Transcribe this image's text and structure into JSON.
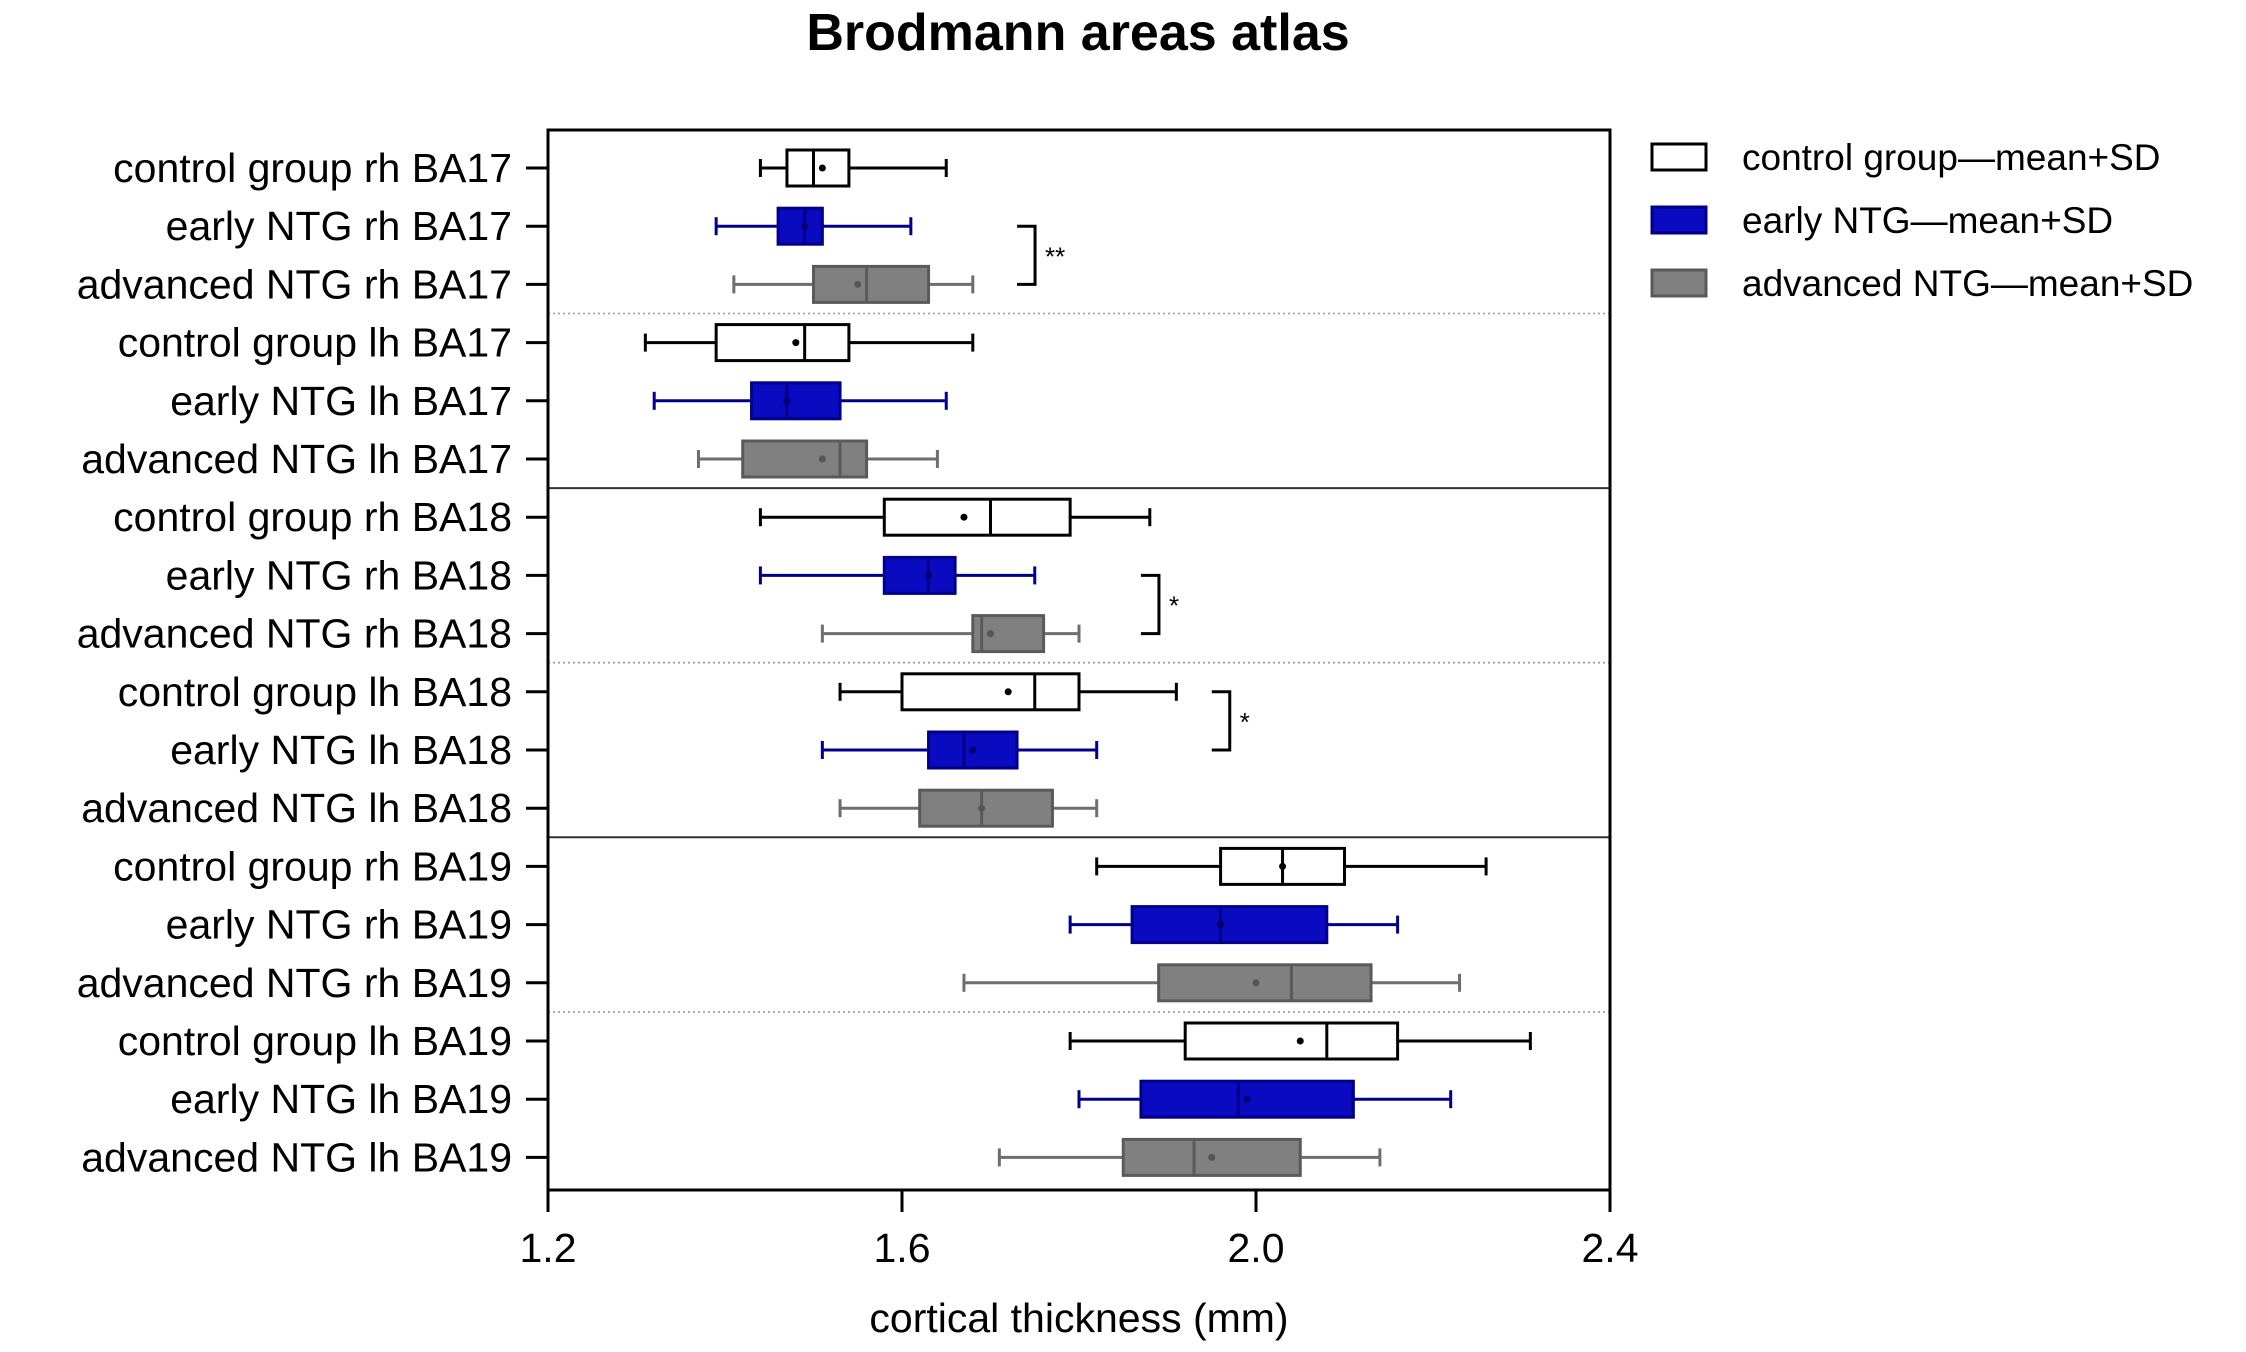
{
  "chart_data": {
    "type": "boxplot-horizontal",
    "title": "Brodmann areas atlas",
    "xlabel": "cortical thickness (mm)",
    "xlim": [
      1.2,
      2.4
    ],
    "xticks": [
      "1.2",
      "1.6",
      "2.0",
      "2.4"
    ],
    "xtick_values": [
      1.2,
      1.6,
      2.0,
      2.4
    ],
    "groups": [
      {
        "name": "control group—mean+SD",
        "key": "control",
        "fill": "#ffffff",
        "stroke": "#000000",
        "whisker": "#000000"
      },
      {
        "name": "early NTG—mean+SD",
        "key": "early",
        "fill": "#0a0ac0",
        "stroke": "#00008b",
        "whisker": "#00008b"
      },
      {
        "name": "advanced NTG—mean+SD",
        "key": "advanced",
        "fill": "#808080",
        "stroke": "#5a5a5a",
        "whisker": "#6e6e6e"
      }
    ],
    "rows": [
      {
        "label": "control group rh BA17",
        "group": "control",
        "min": 1.44,
        "q1": 1.47,
        "median": 1.5,
        "q3": 1.54,
        "max": 1.65,
        "mean": 1.51
      },
      {
        "label": "early NTG rh BA17",
        "group": "early",
        "min": 1.39,
        "q1": 1.46,
        "median": 1.49,
        "q3": 1.51,
        "max": 1.61,
        "mean": 1.49
      },
      {
        "label": "advanced NTG rh BA17",
        "group": "advanced",
        "min": 1.41,
        "q1": 1.5,
        "median": 1.56,
        "q3": 1.63,
        "max": 1.68,
        "mean": 1.55
      },
      {
        "label": "control group lh BA17",
        "group": "control",
        "min": 1.31,
        "q1": 1.39,
        "median": 1.49,
        "q3": 1.54,
        "max": 1.68,
        "mean": 1.48
      },
      {
        "label": "early NTG lh BA17",
        "group": "early",
        "min": 1.32,
        "q1": 1.43,
        "median": 1.47,
        "q3": 1.53,
        "max": 1.65,
        "mean": 1.47
      },
      {
        "label": "advanced NTG lh BA17",
        "group": "advanced",
        "min": 1.37,
        "q1": 1.42,
        "median": 1.53,
        "q3": 1.56,
        "max": 1.64,
        "mean": 1.51
      },
      {
        "label": "control group rh BA18",
        "group": "control",
        "min": 1.44,
        "q1": 1.58,
        "median": 1.7,
        "q3": 1.79,
        "max": 1.88,
        "mean": 1.67
      },
      {
        "label": "early NTG rh BA18",
        "group": "early",
        "min": 1.44,
        "q1": 1.58,
        "median": 1.63,
        "q3": 1.66,
        "max": 1.75,
        "mean": 1.63
      },
      {
        "label": "advanced NTG rh BA18",
        "group": "advanced",
        "min": 1.51,
        "q1": 1.68,
        "median": 1.69,
        "q3": 1.76,
        "max": 1.8,
        "mean": 1.7
      },
      {
        "label": "control group lh BA18",
        "group": "control",
        "min": 1.53,
        "q1": 1.6,
        "median": 1.75,
        "q3": 1.8,
        "max": 1.91,
        "mean": 1.72
      },
      {
        "label": "early NTG lh BA18",
        "group": "early",
        "min": 1.51,
        "q1": 1.63,
        "median": 1.67,
        "q3": 1.73,
        "max": 1.82,
        "mean": 1.68
      },
      {
        "label": "advanced NTG lh BA18",
        "group": "advanced",
        "min": 1.53,
        "q1": 1.62,
        "median": 1.69,
        "q3": 1.77,
        "max": 1.82,
        "mean": 1.69
      },
      {
        "label": "control group rh BA19",
        "group": "control",
        "min": 1.82,
        "q1": 1.96,
        "median": 2.03,
        "q3": 2.1,
        "max": 2.26,
        "mean": 2.03
      },
      {
        "label": "early NTG rh BA19",
        "group": "early",
        "min": 1.79,
        "q1": 1.86,
        "median": 1.96,
        "q3": 2.08,
        "max": 2.16,
        "mean": 1.96
      },
      {
        "label": "advanced NTG rh BA19",
        "group": "advanced",
        "min": 1.67,
        "q1": 1.89,
        "median": 2.04,
        "q3": 2.13,
        "max": 2.23,
        "mean": 2.0
      },
      {
        "label": "control group lh BA19",
        "group": "control",
        "min": 1.79,
        "q1": 1.92,
        "median": 2.08,
        "q3": 2.16,
        "max": 2.31,
        "mean": 2.05
      },
      {
        "label": "early NTG lh BA19",
        "group": "early",
        "min": 1.8,
        "q1": 1.87,
        "median": 1.98,
        "q3": 2.11,
        "max": 2.22,
        "mean": 1.99
      },
      {
        "label": "advanced NTG lh BA19",
        "group": "advanced",
        "min": 1.71,
        "q1": 1.85,
        "median": 1.93,
        "q3": 2.05,
        "max": 2.14,
        "mean": 1.95
      }
    ],
    "separators": [
      {
        "after_row": 2,
        "style": "dotted"
      },
      {
        "after_row": 5,
        "style": "solid"
      },
      {
        "after_row": 8,
        "style": "dotted"
      },
      {
        "after_row": 11,
        "style": "solid"
      },
      {
        "after_row": 14,
        "style": "dotted"
      }
    ],
    "significance": [
      {
        "rows": [
          1,
          2
        ],
        "x_value": 1.73,
        "label": "**"
      },
      {
        "rows": [
          7,
          8
        ],
        "x_value": 1.87,
        "label": "*"
      },
      {
        "rows": [
          9,
          10
        ],
        "x_value": 1.95,
        "label": "*"
      }
    ],
    "legend_position": "top-right"
  }
}
